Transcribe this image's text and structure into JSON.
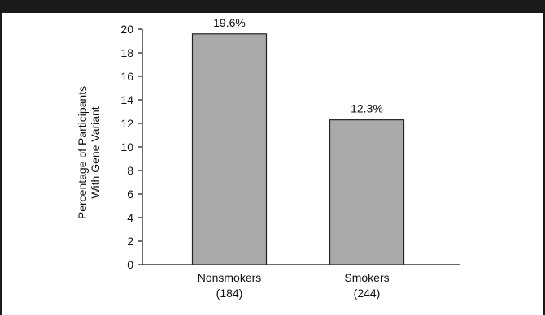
{
  "chart_data": {
    "type": "bar",
    "categories": [
      "Nonsmokers",
      "Smokers"
    ],
    "category_counts": [
      "(184)",
      "(244)"
    ],
    "values": [
      19.6,
      12.3
    ],
    "data_labels": [
      "19.6%",
      "12.3%"
    ],
    "ylabel_lines": [
      "Percentage of Participants",
      "With Gene Variant"
    ],
    "ylim": [
      0,
      20
    ],
    "yticks": [
      0,
      2,
      4,
      6,
      8,
      10,
      12,
      14,
      16,
      18,
      20
    ],
    "grid": false,
    "colors": {
      "bar_fill": "#a9a9a9",
      "bar_stroke": "#222222",
      "axis": "#111111"
    }
  }
}
